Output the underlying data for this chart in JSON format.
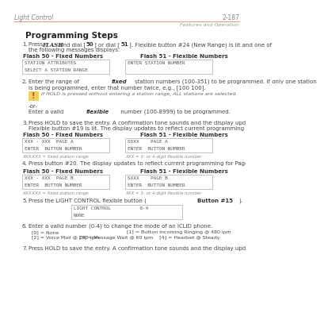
{
  "page_header_left": "Light Control",
  "page_header_right": "2-187",
  "page_subheader_right": "Features and Operation",
  "header_line_color": "#e8a080",
  "title": "Programming Steps",
  "bg_color": "#ffffff",
  "step1_pre": "Press ",
  "step1_bold": "FLASH",
  "step1_mid": " and dial [",
  "step1_bold2": "50",
  "step1_mid2": "] or dial [",
  "step1_bold3": "51",
  "step1_post": "]. Flexible button #24 (New Range) is lit and one of",
  "step1_line2": "the following messages displays:",
  "flash50_label": "Flash 50 - Fixed Numbers",
  "flash51_label": "Flash 51 - Flexible Numbers",
  "box1a_lines": [
    "STATION ATTRIBUTES",
    "SELECT A STATION RANGE"
  ],
  "box1b_lines": [
    "ENTER STATION NUMBER"
  ],
  "step2_pre": "Enter the range of ",
  "step2_bold": "fixed",
  "step2_post": " station numbers (100-351) to be programmed. If only one station",
  "step2_line2": "is being programmed, enter that number twice, e.g., [100 100].",
  "note_italic": "If HOLD is pressed without entering a station range, ALL stations are selected.",
  "or_text": "-or-",
  "flexible_pre": "Enter a valid ",
  "flexible_bold": "flexible",
  "flexible_post": " number (100-8999) to be programmed.",
  "step3_line1": "Press HOLD to save the entry. A confirmation tone sounds and the display updates.",
  "step3_line2": "Flexible button #19 is lit. The display updates to reflect current programming for Page A:",
  "box3a_lines": [
    "XXX - XXX  PAGE A",
    "ENTER  BUTTON NUMBER"
  ],
  "box3b_lines": [
    "SXXX    PAGE A",
    "ENTER  BUTTON NUMBER"
  ],
  "note3a": "XXX-XXX = fixed station range",
  "note3b": "XXX = 3- or 4-digit flexible number",
  "step4": "Press button #20. The display updates to reflect current programming for Page B.",
  "box4a_lines": [
    "XXX - XXX  PAGE B",
    "ENTER  BUTTON NUMBER"
  ],
  "box4b_lines": [
    "SXXX    PAGE B",
    "ENTER  BUTTON NUMBER"
  ],
  "note4a": "XXX-XXX = fixed station range",
  "note4b": "XXX = 3- or 4-digit flexible number",
  "step5_pre": "Press the LIGHT CONTROL flexible button (",
  "step5_bold": "Button #15",
  "step5_post": ").",
  "box5_lines": [
    "LIGHT CONTROL          0-4",
    "NONE"
  ],
  "step6": "Enter a valid number (0-4) to change the mode of an ICLID phone.",
  "opt_0": "[0] = None",
  "opt_1": "[1] = Button Incoming Ringing @ 480 ipm",
  "opt_2": "[2] = Voice Mail @ 240 ipm",
  "opt_34": "[3] = Message Wait @ 60 ipm    [4] = Headset @ Steady",
  "step7": "Press HOLD to save the entry. A confirmation tone sounds and the display updates."
}
